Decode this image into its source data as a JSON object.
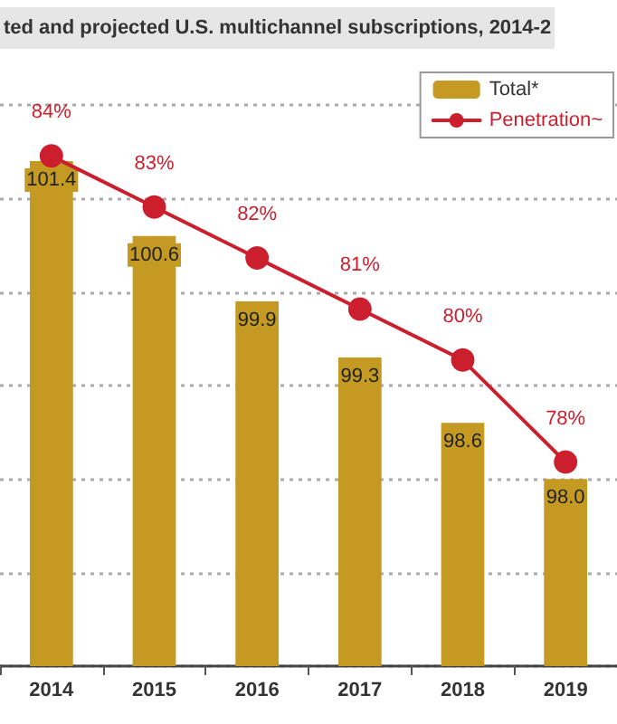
{
  "chart_data": {
    "type": "bar",
    "title": "ted and projected U.S. multichannel subscriptions, 2014-2",
    "categories": [
      "2014",
      "2015",
      "2016",
      "2017",
      "2018",
      "2019"
    ],
    "series": [
      {
        "name": "Total*",
        "color": "#c49a22",
        "values": [
          101.4,
          100.6,
          99.9,
          99.3,
          98.6,
          98.0
        ],
        "value_labels": [
          "101.4",
          "100.6",
          "99.9",
          "99.3",
          "98.6",
          "98.0"
        ]
      },
      {
        "name": "Penetration~",
        "type": "line",
        "axis": "y2",
        "color": "#cc1f2e",
        "values": [
          84,
          83,
          82,
          81,
          80,
          78
        ],
        "value_labels": [
          "84%",
          "83%",
          "82%",
          "81%",
          "80%",
          "78%"
        ]
      }
    ],
    "ylim": [
      96,
      102
    ],
    "yticks": [
      {
        "value": 96,
        "label": null
      },
      {
        "value": 97,
        "label": null
      },
      {
        "value": 98,
        "label": null
      },
      {
        "value": 99,
        "label": null
      },
      {
        "value": 100,
        "label": null
      },
      {
        "value": 101,
        "label": null
      },
      {
        "value": 102,
        "label": null
      }
    ],
    "y2lim": [
      74,
      85
    ],
    "tick_labels": "x",
    "grid": "y",
    "legend": "top right",
    "marker": "circle",
    "line_style": "solid"
  }
}
